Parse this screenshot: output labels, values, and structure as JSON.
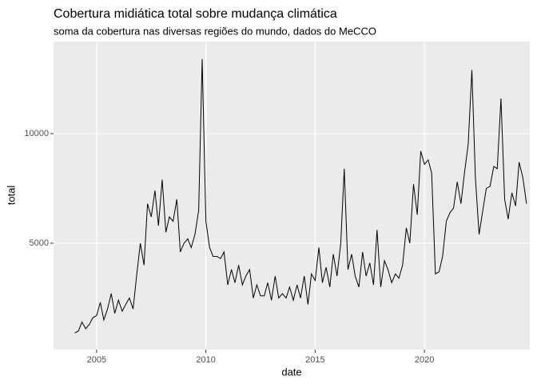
{
  "chart_data": {
    "type": "line",
    "title": "Cobertura midiática total sobre mudança climática",
    "subtitle": "soma da cobertura nas diversas regiões do mundo, dados do MeCCO",
    "x_label": "date",
    "y_label": "total",
    "color": "#000000",
    "grid": true,
    "xlim": [
      2003.03,
      2024.82
    ],
    "ylim": [
      146,
      14197
    ],
    "xticks": [
      2005,
      2010,
      2015,
      2020
    ],
    "yticks": [
      5000,
      10000
    ],
    "x": [
      2004.0,
      2004.17,
      2004.33,
      2004.5,
      2004.67,
      2004.83,
      2005.0,
      2005.17,
      2005.33,
      2005.5,
      2005.67,
      2005.83,
      2006.0,
      2006.17,
      2006.33,
      2006.5,
      2006.67,
      2006.83,
      2007.0,
      2007.17,
      2007.33,
      2007.5,
      2007.67,
      2007.83,
      2008.0,
      2008.17,
      2008.33,
      2008.5,
      2008.67,
      2008.83,
      2009.0,
      2009.17,
      2009.33,
      2009.5,
      2009.67,
      2009.83,
      2010.0,
      2010.17,
      2010.33,
      2010.5,
      2010.67,
      2010.83,
      2011.0,
      2011.17,
      2011.33,
      2011.5,
      2011.67,
      2011.83,
      2012.0,
      2012.17,
      2012.33,
      2012.5,
      2012.67,
      2012.83,
      2013.0,
      2013.17,
      2013.33,
      2013.5,
      2013.67,
      2013.83,
      2014.0,
      2014.17,
      2014.33,
      2014.5,
      2014.67,
      2014.83,
      2015.0,
      2015.17,
      2015.33,
      2015.5,
      2015.67,
      2015.83,
      2016.0,
      2016.17,
      2016.33,
      2016.5,
      2016.67,
      2016.83,
      2017.0,
      2017.17,
      2017.33,
      2017.5,
      2017.67,
      2017.83,
      2018.0,
      2018.17,
      2018.33,
      2018.5,
      2018.67,
      2018.83,
      2019.0,
      2019.17,
      2019.33,
      2019.5,
      2019.67,
      2019.83,
      2020.0,
      2020.17,
      2020.33,
      2020.5,
      2020.67,
      2020.83,
      2021.0,
      2021.17,
      2021.33,
      2021.5,
      2021.67,
      2021.83,
      2022.0,
      2022.17,
      2022.33,
      2022.5,
      2022.67,
      2022.83,
      2023.0,
      2023.17,
      2023.33,
      2023.5,
      2023.67,
      2023.83,
      2024.0,
      2024.17,
      2024.33,
      2024.5,
      2024.67
    ],
    "values": [
      900,
      1000,
      1400,
      1100,
      1300,
      1600,
      1700,
      2300,
      1500,
      2000,
      2700,
      1800,
      2400,
      1900,
      2200,
      2500,
      2000,
      3500,
      5000,
      4000,
      6800,
      6200,
      7400,
      5800,
      7900,
      5500,
      6200,
      6000,
      7000,
      4600,
      5000,
      5200,
      4800,
      5400,
      6500,
      13400,
      6000,
      4800,
      4400,
      4400,
      4300,
      4600,
      3100,
      3800,
      3200,
      4000,
      3100,
      3500,
      3800,
      2500,
      3100,
      2600,
      2600,
      3200,
      2400,
      3500,
      2500,
      2700,
      2500,
      3000,
      2400,
      3100,
      2500,
      3500,
      2200,
      3600,
      3300,
      4800,
      3200,
      3900,
      3000,
      4500,
      3500,
      5000,
      8400,
      3800,
      4500,
      3500,
      3000,
      4600,
      3500,
      4100,
      3100,
      5600,
      3000,
      4200,
      3800,
      3200,
      3600,
      3400,
      4000,
      5700,
      5000,
      7700,
      6300,
      9200,
      8600,
      8800,
      8200,
      3600,
      3700,
      4400,
      6000,
      6400,
      6600,
      7800,
      6800,
      8200,
      9500,
      12900,
      8000,
      5400,
      6500,
      7500,
      7600,
      8500,
      8400,
      11600,
      7000,
      6100,
      7300,
      6700,
      8700,
      8000,
      6800
    ]
  }
}
